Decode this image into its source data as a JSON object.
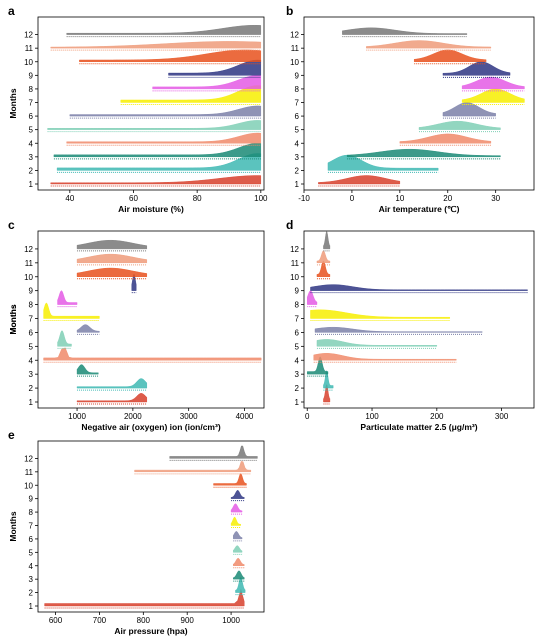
{
  "month_colors": [
    "#d7402c",
    "#3eb8b3",
    "#1a8a75",
    "#f08a6a",
    "#7fcfb5",
    "#7b80a8",
    "#f7ef00",
    "#e45ae5",
    "#2e3583",
    "#e8511d",
    "#ef9b7a",
    "#777777"
  ],
  "chart_data": [
    {
      "type": "ridgeline",
      "panel": "a",
      "xlabel": "Air moisture (%)",
      "ylabel": "Months",
      "xlim": [
        30,
        101
      ],
      "xticks": [
        "40",
        "60",
        "80",
        "100"
      ],
      "categories": [
        "1",
        "2",
        "3",
        "4",
        "5",
        "6",
        "7",
        "8",
        "9",
        "10",
        "11",
        "12"
      ],
      "series": [
        {
          "name": "1",
          "range": [
            34,
            100
          ],
          "peak": 99,
          "spread": 12,
          "height": 0.5
        },
        {
          "name": "2",
          "range": [
            36,
            100
          ],
          "peak": 99,
          "spread": 6,
          "height": 1.0
        },
        {
          "name": "3",
          "range": [
            35,
            100
          ],
          "peak": 99,
          "spread": 6,
          "height": 0.8
        },
        {
          "name": "4",
          "range": [
            39,
            100
          ],
          "peak": 99,
          "spread": 6,
          "height": 0.6
        },
        {
          "name": "5",
          "range": [
            33,
            100
          ],
          "peak": 99,
          "spread": 6,
          "height": 0.55
        },
        {
          "name": "6",
          "range": [
            40,
            100
          ],
          "peak": 99,
          "spread": 6,
          "height": 0.6
        },
        {
          "name": "7",
          "range": [
            56,
            100
          ],
          "peak": 99,
          "spread": 6,
          "height": 1.0
        },
        {
          "name": "8",
          "range": [
            66,
            100
          ],
          "peak": 99,
          "spread": 6,
          "height": 0.8
        },
        {
          "name": "9",
          "range": [
            71,
            100
          ],
          "peak": 99,
          "spread": 6,
          "height": 0.9
        },
        {
          "name": "10",
          "range": [
            43,
            100
          ],
          "peak": 95,
          "spread": 12,
          "height": 0.7
        },
        {
          "name": "11",
          "range": [
            34,
            100
          ],
          "peak": 90,
          "spread": 20,
          "height": 0.4
        },
        {
          "name": "12",
          "range": [
            39,
            100
          ],
          "peak": 98,
          "spread": 10,
          "height": 0.55
        }
      ]
    },
    {
      "type": "ridgeline",
      "panel": "b",
      "xlabel": "Air temperature (℃)",
      "ylabel": "",
      "xlim": [
        -10,
        38
      ],
      "xticks": [
        "-10",
        "0",
        "10",
        "20",
        "30"
      ],
      "categories": [
        "1",
        "2",
        "3",
        "4",
        "5",
        "6",
        "7",
        "8",
        "9",
        "10",
        "11",
        "12"
      ],
      "series": [
        {
          "name": "1",
          "range": [
            -7,
            10
          ],
          "peak": 3,
          "spread": 4,
          "height": 0.5
        },
        {
          "name": "2",
          "range": [
            -5,
            18
          ],
          "peak": -1,
          "spread": 3,
          "height": 0.9
        },
        {
          "name": "3",
          "range": [
            -1,
            31
          ],
          "peak": 12,
          "spread": 6,
          "height": 0.45
        },
        {
          "name": "4",
          "range": [
            10,
            29
          ],
          "peak": 20,
          "spread": 4,
          "height": 0.55
        },
        {
          "name": "5",
          "range": [
            14,
            31
          ],
          "peak": 22,
          "spread": 4,
          "height": 0.5
        },
        {
          "name": "6",
          "range": [
            19,
            30
          ],
          "peak": 24,
          "spread": 2.5,
          "height": 0.8
        },
        {
          "name": "7",
          "range": [
            23,
            36
          ],
          "peak": 30,
          "spread": 3,
          "height": 0.8
        },
        {
          "name": "8",
          "range": [
            23,
            36
          ],
          "peak": 29,
          "spread": 3,
          "height": 0.7
        },
        {
          "name": "9",
          "range": [
            19,
            33
          ],
          "peak": 27,
          "spread": 2.5,
          "height": 0.8
        },
        {
          "name": "10",
          "range": [
            13,
            28
          ],
          "peak": 20,
          "spread": 3,
          "height": 0.7
        },
        {
          "name": "11",
          "range": [
            3,
            29
          ],
          "peak": 14,
          "spread": 5,
          "height": 0.45
        },
        {
          "name": "12",
          "range": [
            -2,
            24
          ],
          "peak": 4,
          "spread": 5,
          "height": 0.4
        }
      ]
    },
    {
      "type": "ridgeline",
      "panel": "c",
      "xlabel": "Negative air (oxygen) ion (ion/cm³)",
      "ylabel": "Months",
      "xlim": [
        300,
        4350
      ],
      "xticks": [
        "1000",
        "2000",
        "3000",
        "4000"
      ],
      "categories": [
        "1",
        "2",
        "3",
        "4",
        "5",
        "6",
        "7",
        "8",
        "9",
        "10",
        "11",
        "12"
      ],
      "series": [
        {
          "name": "1",
          "range": [
            1000,
            2250
          ],
          "peak": 2150,
          "spread": 80,
          "height": 0.5
        },
        {
          "name": "2",
          "range": [
            1000,
            2250
          ],
          "peak": 2150,
          "spread": 80,
          "height": 0.55
        },
        {
          "name": "3",
          "range": [
            1000,
            1380
          ],
          "peak": 1080,
          "spread": 60,
          "height": 0.55
        },
        {
          "name": "4",
          "range": [
            400,
            4300
          ],
          "peak": 760,
          "spread": 40,
          "height": 0.9
        },
        {
          "name": "5",
          "range": [
            650,
            900
          ],
          "peak": 730,
          "spread": 40,
          "height": 0.9
        },
        {
          "name": "6",
          "range": [
            1000,
            1400
          ],
          "peak": 1150,
          "spread": 80,
          "height": 0.45
        },
        {
          "name": "7",
          "range": [
            400,
            1400
          ],
          "peak": 450,
          "spread": 40,
          "height": 0.9
        },
        {
          "name": "8",
          "range": [
            650,
            1000
          ],
          "peak": 720,
          "spread": 40,
          "height": 0.8
        },
        {
          "name": "9",
          "range": [
            1980,
            2060
          ],
          "peak": 2020,
          "spread": 25,
          "height": 0.95
        },
        {
          "name": "10",
          "range": [
            1000,
            2250
          ],
          "peak": 1600,
          "spread": 400,
          "height": 0.5
        },
        {
          "name": "11",
          "range": [
            1000,
            2250
          ],
          "peak": 1600,
          "spread": 400,
          "height": 0.5
        },
        {
          "name": "12",
          "range": [
            1000,
            2250
          ],
          "peak": 1600,
          "spread": 400,
          "height": 0.5
        }
      ]
    },
    {
      "type": "ridgeline",
      "panel": "d",
      "xlabel": "Particulate matter 2.5 (μg/m³)",
      "ylabel": "Months",
      "xlim": [
        -5,
        350
      ],
      "xticks": [
        "0",
        "100",
        "200",
        "300"
      ],
      "categories": [
        "1",
        "2",
        "3",
        "4",
        "5",
        "6",
        "7",
        "8",
        "9",
        "10",
        "11",
        "12"
      ],
      "series": [
        {
          "name": "1",
          "range": [
            25,
            35
          ],
          "peak": 30,
          "spread": 2,
          "height": 1.0
        },
        {
          "name": "2",
          "range": [
            25,
            40
          ],
          "peak": 30,
          "spread": 2,
          "height": 1.0
        },
        {
          "name": "3",
          "range": [
            0,
            32
          ],
          "peak": 20,
          "spread": 3,
          "height": 1.0
        },
        {
          "name": "4",
          "range": [
            10,
            230
          ],
          "peak": 30,
          "spread": 25,
          "height": 0.4
        },
        {
          "name": "5",
          "range": [
            15,
            200
          ],
          "peak": 30,
          "spread": 25,
          "height": 0.4
        },
        {
          "name": "6",
          "range": [
            12,
            270
          ],
          "peak": 40,
          "spread": 30,
          "height": 0.3
        },
        {
          "name": "7",
          "range": [
            5,
            220
          ],
          "peak": 20,
          "spread": 40,
          "height": 0.5
        },
        {
          "name": "8",
          "range": [
            0,
            15
          ],
          "peak": 5,
          "spread": 4,
          "height": 0.8
        },
        {
          "name": "9",
          "range": [
            5,
            340
          ],
          "peak": 40,
          "spread": 30,
          "height": 0.35
        },
        {
          "name": "10",
          "range": [
            15,
            35
          ],
          "peak": 25,
          "spread": 3,
          "height": 0.9
        },
        {
          "name": "11",
          "range": [
            15,
            35
          ],
          "peak": 25,
          "spread": 3,
          "height": 0.7
        },
        {
          "name": "12",
          "range": [
            25,
            35
          ],
          "peak": 30,
          "spread": 2,
          "height": 1.0
        }
      ]
    },
    {
      "type": "ridgeline",
      "panel": "e",
      "xlabel": "Air pressure (hpa)",
      "ylabel": "Months",
      "xlim": [
        560,
        1075
      ],
      "xticks": [
        "600",
        "700",
        "800",
        "900",
        "1000"
      ],
      "categories": [
        "1",
        "2",
        "3",
        "4",
        "5",
        "6",
        "7",
        "8",
        "9",
        "10",
        "11",
        "12"
      ],
      "series": [
        {
          "name": "1",
          "range": [
            575,
            1030
          ],
          "peak": 1022,
          "spread": 4,
          "height": 1.0
        },
        {
          "name": "2",
          "range": [
            1010,
            1032
          ],
          "peak": 1022,
          "spread": 4,
          "height": 0.9
        },
        {
          "name": "3",
          "range": [
            1005,
            1030
          ],
          "peak": 1018,
          "spread": 5,
          "height": 0.5
        },
        {
          "name": "4",
          "range": [
            1005,
            1030
          ],
          "peak": 1016,
          "spread": 5,
          "height": 0.45
        },
        {
          "name": "5",
          "range": [
            1005,
            1025
          ],
          "peak": 1014,
          "spread": 5,
          "height": 0.4
        },
        {
          "name": "6",
          "range": [
            1005,
            1025
          ],
          "peak": 1012,
          "spread": 5,
          "height": 0.45
        },
        {
          "name": "7",
          "range": [
            1000,
            1022
          ],
          "peak": 1008,
          "spread": 4,
          "height": 0.5
        },
        {
          "name": "8",
          "range": [
            1000,
            1025
          ],
          "peak": 1010,
          "spread": 5,
          "height": 0.5
        },
        {
          "name": "9",
          "range": [
            1000,
            1030
          ],
          "peak": 1015,
          "spread": 5,
          "height": 0.5
        },
        {
          "name": "10",
          "range": [
            960,
            1035
          ],
          "peak": 1022,
          "spread": 4,
          "height": 0.7
        },
        {
          "name": "11",
          "range": [
            780,
            1045
          ],
          "peak": 1025,
          "spread": 4,
          "height": 0.7
        },
        {
          "name": "12",
          "range": [
            860,
            1060
          ],
          "peak": 1025,
          "spread": 4,
          "height": 0.8
        }
      ]
    }
  ]
}
